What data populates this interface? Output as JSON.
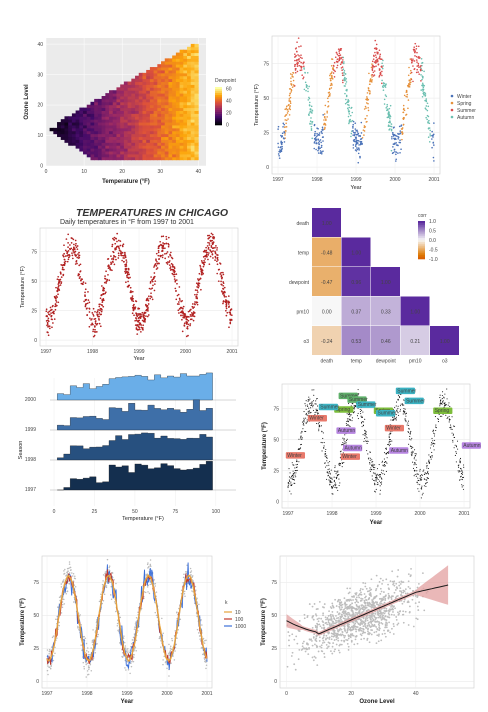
{
  "chart_data": [
    {
      "id": "p1",
      "type": "heatmap",
      "xlabel": "Temperature (°F)",
      "ylabel": "Ozone Level",
      "x_ticks": [
        "0",
        "10",
        "20",
        "30",
        "40"
      ],
      "y_ticks": [
        "0",
        "10",
        "20",
        "30",
        "40"
      ],
      "xlim": [
        0,
        42
      ],
      "ylim": [
        0,
        42
      ],
      "legend_title": "Dewpoint",
      "legend_ticks": [
        "0",
        "20",
        "40",
        "60"
      ],
      "colorscale": [
        "#000004",
        "#420a68",
        "#932667",
        "#dd513a",
        "#fca50a",
        "#fcffa4"
      ],
      "legend": "right"
    },
    {
      "id": "p2",
      "type": "scatter",
      "xlabel": "Year",
      "ylabel": "Temperature (°F)",
      "x_ticks": [
        "1997",
        "1998",
        "1999",
        "2000",
        "2001"
      ],
      "y_ticks": [
        "0",
        "25",
        "50",
        "75"
      ],
      "ylim": [
        -5,
        95
      ],
      "series": [
        {
          "name": "Winter",
          "color": "#4a72b8"
        },
        {
          "name": "Spring",
          "color": "#e6913b"
        },
        {
          "name": "Summer",
          "color": "#d94b4b"
        },
        {
          "name": "Autumn",
          "color": "#6bbfb0"
        }
      ],
      "legend": "right"
    },
    {
      "id": "p3",
      "type": "scatter",
      "title": "TEMPERATURES IN CHICAGO",
      "subtitle": "Daily temperatures in °F from 1997 to 2001",
      "xlabel": "Year",
      "ylabel": "Temperature (°F)",
      "x_ticks": [
        "1997",
        "1998",
        "1999",
        "2000",
        "2001"
      ],
      "y_ticks": [
        "0",
        "25",
        "50",
        "75"
      ],
      "ylim": [
        -5,
        95
      ],
      "color": "#b22222"
    },
    {
      "id": "p4",
      "type": "heatmap",
      "variables": [
        "death",
        "temp",
        "dewpoint",
        "pm10",
        "o3"
      ],
      "cells": [
        {
          "row": "death",
          "col": "death",
          "value": "1.00"
        },
        {
          "row": "temp",
          "col": "death",
          "value": "-0.48"
        },
        {
          "row": "temp",
          "col": "temp",
          "value": "1.00"
        },
        {
          "row": "dewpoint",
          "col": "death",
          "value": "-0.47"
        },
        {
          "row": "dewpoint",
          "col": "temp",
          "value": "0.96"
        },
        {
          "row": "dewpoint",
          "col": "dewpoint",
          "value": "1.00"
        },
        {
          "row": "pm10",
          "col": "death",
          "value": "0.00"
        },
        {
          "row": "pm10",
          "col": "temp",
          "value": "0.37"
        },
        {
          "row": "pm10",
          "col": "dewpoint",
          "value": "0.33"
        },
        {
          "row": "pm10",
          "col": "pm10",
          "value": "1.00"
        },
        {
          "row": "o3",
          "col": "death",
          "value": "-0.24"
        },
        {
          "row": "o3",
          "col": "temp",
          "value": "0.53"
        },
        {
          "row": "o3",
          "col": "dewpoint",
          "value": "0.46"
        },
        {
          "row": "o3",
          "col": "pm10",
          "value": "0.21"
        },
        {
          "row": "o3",
          "col": "o3",
          "value": "1.00"
        }
      ],
      "legend_title": "corr",
      "legend_ticks": [
        "1.0",
        "0.5",
        "0.0",
        "-0.5",
        "-1.0"
      ],
      "legend": "right"
    },
    {
      "id": "p5",
      "type": "bar",
      "xlabel": "Temperature (°F)",
      "ylabel": "Season",
      "x_ticks": [
        "0",
        "25",
        "50",
        "75",
        "100"
      ],
      "ridges": [
        "2000",
        "1999",
        "1998",
        "1997"
      ],
      "colors": [
        "#6aaee8",
        "#3e6fa8",
        "#27507f",
        "#142f4f"
      ]
    },
    {
      "id": "p6",
      "type": "scatter",
      "xlabel": "Year",
      "ylabel": "Temperature (°F)",
      "x_ticks": [
        "1997",
        "1998",
        "1999",
        "2000",
        "2001"
      ],
      "y_ticks": [
        "0",
        "25",
        "50",
        "75"
      ],
      "ylim": [
        -5,
        95
      ],
      "annotations": [
        {
          "text": "Summer",
          "season": "Summer",
          "color": "#5fb06a"
        },
        {
          "text": "Summer",
          "season": "Summer",
          "color": "#5fb06a"
        },
        {
          "text": "Summer",
          "season": "Summer",
          "color": "#3bb3c3"
        },
        {
          "text": "Summer",
          "season": "Summer",
          "color": "#3bb3c3"
        },
        {
          "text": "Summer",
          "season": "Summer",
          "color": "#3bb3c3"
        },
        {
          "text": "Spring",
          "season": "Spring",
          "color": "#7dbd3b"
        },
        {
          "text": "Spring",
          "season": "Spring",
          "color": "#7dbd3b"
        },
        {
          "text": "Spring",
          "season": "Spring",
          "color": "#7dbd3b"
        },
        {
          "text": "Summer",
          "season": "Summer",
          "color": "#3bb3c3"
        },
        {
          "text": "Summer",
          "season": "Summer",
          "color": "#3bb3c3"
        },
        {
          "text": "Winter",
          "season": "Winter",
          "color": "#e8796b"
        },
        {
          "text": "Winter",
          "season": "Winter",
          "color": "#e8796b"
        },
        {
          "text": "Winter",
          "season": "Winter",
          "color": "#e8796b"
        },
        {
          "text": "Winter",
          "season": "Winter",
          "color": "#e8796b"
        },
        {
          "text": "Autumn",
          "season": "Autumn",
          "color": "#b684e0"
        },
        {
          "text": "Autumn",
          "season": "Autumn",
          "color": "#b684e0"
        },
        {
          "text": "Autumn",
          "season": "Autumn",
          "color": "#b684e0"
        },
        {
          "text": "Autumn",
          "season": "Autumn",
          "color": "#b684e0"
        }
      ]
    },
    {
      "id": "p7",
      "type": "line",
      "xlabel": "Year",
      "ylabel": "Temperature (°F)",
      "x_ticks": [
        "1997",
        "1998",
        "1999",
        "2000",
        "2001"
      ],
      "y_ticks": [
        "0",
        "25",
        "50",
        "75"
      ],
      "ylim": [
        -5,
        95
      ],
      "legend_title": "k",
      "series": [
        {
          "name": "10",
          "color": "#e6a23c"
        },
        {
          "name": "100",
          "color": "#c0392b"
        },
        {
          "name": "1000",
          "color": "#3b6fd9"
        }
      ],
      "legend": "right"
    },
    {
      "id": "p8",
      "type": "scatter",
      "xlabel": "Ozone Level",
      "ylabel": "Temperature (°F)",
      "x_ticks": [
        "0",
        "20",
        "40"
      ],
      "y_ticks": [
        "0",
        "25",
        "50",
        "75"
      ],
      "xlim": [
        -2,
        58
      ],
      "ylim": [
        -5,
        95
      ],
      "smooth": {
        "color": "#1a1a1a",
        "band": "#e3a0a0"
      }
    }
  ]
}
